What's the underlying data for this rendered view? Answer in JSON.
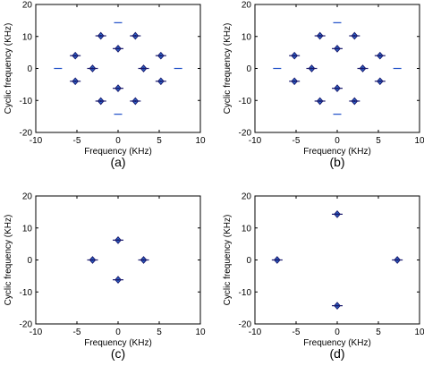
{
  "figure": {
    "panel_count": 4,
    "colors": {
      "frame": "#000000",
      "marker_dark": "#1a1a6e",
      "marker_light": "#2f6fd6",
      "segment": "#1f4fc8"
    }
  },
  "chart_data": [
    {
      "type": "scatter",
      "panel_label": "(a)",
      "title": "",
      "xlabel": "Frequency (KHz)",
      "ylabel": "Cyclic frequency (KHz)",
      "xlim": [
        -10,
        10
      ],
      "ylim": [
        -20,
        20
      ],
      "xticks": [
        -10,
        -5,
        0,
        5,
        10
      ],
      "yticks": [
        -20,
        -10,
        0,
        10,
        20
      ],
      "grid": false,
      "points": [
        {
          "x": 0,
          "y": 6.2
        },
        {
          "x": 0,
          "y": -6.2
        },
        {
          "x": -3.1,
          "y": 0
        },
        {
          "x": 3.1,
          "y": 0
        },
        {
          "x": -5.2,
          "y": 4
        },
        {
          "x": 5.2,
          "y": 4
        },
        {
          "x": -5.2,
          "y": -4
        },
        {
          "x": 5.2,
          "y": -4
        },
        {
          "x": -2.1,
          "y": 10.2
        },
        {
          "x": 2.1,
          "y": 10.2
        },
        {
          "x": -2.1,
          "y": -10.2
        },
        {
          "x": 2.1,
          "y": -10.2
        }
      ],
      "segments": [
        {
          "x": 0,
          "y": 14.3
        },
        {
          "x": 0,
          "y": -14.3
        },
        {
          "x": -7.3,
          "y": 0
        },
        {
          "x": 7.3,
          "y": 0
        }
      ]
    },
    {
      "type": "scatter",
      "panel_label": "(b)",
      "title": "",
      "xlabel": "Frequency (KHz)",
      "ylabel": "Cyclic frequency (KHz)",
      "xlim": [
        -10,
        10
      ],
      "ylim": [
        -20,
        20
      ],
      "xticks": [
        -10,
        -5,
        0,
        5,
        10
      ],
      "yticks": [
        -20,
        -10,
        0,
        10,
        20
      ],
      "grid": false,
      "points": [
        {
          "x": 0,
          "y": 6.2
        },
        {
          "x": 0,
          "y": -6.2
        },
        {
          "x": -3.1,
          "y": 0
        },
        {
          "x": 3.1,
          "y": 0
        },
        {
          "x": -5.2,
          "y": 4
        },
        {
          "x": 5.2,
          "y": 4
        },
        {
          "x": -5.2,
          "y": -4
        },
        {
          "x": 5.2,
          "y": -4
        },
        {
          "x": -2.1,
          "y": 10.2
        },
        {
          "x": 2.1,
          "y": 10.2
        },
        {
          "x": -2.1,
          "y": -10.2
        },
        {
          "x": 2.1,
          "y": -10.2
        }
      ],
      "segments": [
        {
          "x": 0,
          "y": 14.3
        },
        {
          "x": 0,
          "y": -14.3
        },
        {
          "x": -7.3,
          "y": 0
        },
        {
          "x": 7.3,
          "y": 0
        }
      ]
    },
    {
      "type": "scatter",
      "panel_label": "(c)",
      "title": "",
      "xlabel": "Frequency (KHz)",
      "ylabel": "Cyclic frequency (KHz)",
      "xlim": [
        -10,
        10
      ],
      "ylim": [
        -20,
        20
      ],
      "xticks": [
        -10,
        -5,
        0,
        5,
        10
      ],
      "yticks": [
        -20,
        -10,
        0,
        10,
        20
      ],
      "grid": false,
      "points": [
        {
          "x": 0,
          "y": 6.2
        },
        {
          "x": 0,
          "y": -6.2
        },
        {
          "x": -3.1,
          "y": 0
        },
        {
          "x": 3.1,
          "y": 0
        }
      ],
      "segments": []
    },
    {
      "type": "scatter",
      "panel_label": "(d)",
      "title": "",
      "xlabel": "Frequency (KHz)",
      "ylabel": "Cyclic frequency (KHz)",
      "xlim": [
        -10,
        10
      ],
      "ylim": [
        -20,
        20
      ],
      "xticks": [
        -10,
        -5,
        0,
        5,
        10
      ],
      "yticks": [
        -20,
        -10,
        0,
        10,
        20
      ],
      "grid": false,
      "points": [
        {
          "x": 0,
          "y": 14.3
        },
        {
          "x": 0,
          "y": -14.3
        },
        {
          "x": -7.3,
          "y": 0
        },
        {
          "x": 7.3,
          "y": 0
        }
      ],
      "segments": []
    }
  ]
}
